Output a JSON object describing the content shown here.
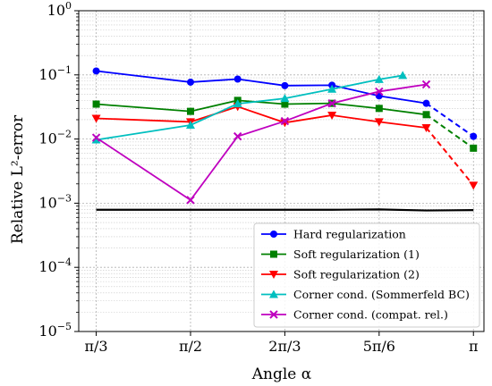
{
  "chart_data": {
    "type": "line",
    "xlabel": "Angle α",
    "ylabel": "Relative L²-error",
    "yscale": "log",
    "xlim": [
      0.95,
      3.2
    ],
    "ylim": [
      1e-05,
      1
    ],
    "grid": true,
    "legend_position": "lower-right",
    "x": [
      1.0472,
      1.5708,
      2.0944,
      2.3562,
      2.618,
      2.8798,
      3.1416
    ],
    "xticks": [
      {
        "value": 1.0472,
        "label": "π/3"
      },
      {
        "value": 1.5708,
        "label": "π/2"
      },
      {
        "value": 2.0944,
        "label": "2π/3"
      },
      {
        "value": 2.618,
        "label": "5π/6"
      },
      {
        "value": 3.1416,
        "label": "π"
      }
    ],
    "yticks": [
      {
        "value": 1,
        "base": "10",
        "exp": "0"
      },
      {
        "value": 0.1,
        "base": "10",
        "exp": "−1"
      },
      {
        "value": 0.01,
        "base": "10",
        "exp": "−2"
      },
      {
        "value": 0.001,
        "base": "10",
        "exp": "−3"
      },
      {
        "value": 0.0001,
        "base": "10",
        "exp": "−4"
      },
      {
        "value": 1e-05,
        "base": "10",
        "exp": "−5"
      }
    ],
    "series": [
      {
        "name": "Hard regularization",
        "color": "#0000ff",
        "marker": "circle",
        "x": [
          1.0472,
          1.5708,
          1.8326,
          2.0944,
          2.3562,
          2.618,
          2.8798
        ],
        "values": [
          0.115,
          0.077,
          0.086,
          0.068,
          0.069,
          0.047,
          0.036
        ],
        "extension": {
          "x": [
            2.8798,
            3.1416
          ],
          "values": [
            0.036,
            0.011
          ]
        }
      },
      {
        "name": "Soft regularization (1)",
        "color": "#008000",
        "marker": "square",
        "x": [
          1.0472,
          1.5708,
          1.8326,
          2.0944,
          2.3562,
          2.618,
          2.8798
        ],
        "values": [
          0.035,
          0.027,
          0.04,
          0.035,
          0.036,
          0.03,
          0.024
        ],
        "extension": {
          "x": [
            2.8798,
            3.1416
          ],
          "values": [
            0.024,
            0.0072
          ]
        }
      },
      {
        "name": "Soft regularization (2)",
        "color": "#ff0000",
        "marker": "triangle-down",
        "x": [
          1.0472,
          1.5708,
          1.8326,
          2.0944,
          2.3562,
          2.618,
          2.8798
        ],
        "values": [
          0.021,
          0.0185,
          0.032,
          0.018,
          0.0235,
          0.0185,
          0.015
        ],
        "extension": {
          "x": [
            2.8798,
            3.1416
          ],
          "values": [
            0.015,
            0.0019
          ]
        }
      },
      {
        "name": "Corner cond. (Sommerfeld BC)",
        "color": "#00bfbf",
        "marker": "triangle-up",
        "x": [
          1.0472,
          1.5708,
          1.8326,
          2.0944,
          2.3562,
          2.618,
          2.7489
        ],
        "values": [
          0.0097,
          0.0165,
          0.0355,
          0.043,
          0.06,
          0.085,
          0.098
        ]
      },
      {
        "name": "Corner cond. (compat. rel.)",
        "color": "#bf00bf",
        "marker": "x",
        "x": [
          1.0472,
          1.5708,
          1.8326,
          2.0944,
          2.3562,
          2.618,
          2.8798
        ],
        "values": [
          0.0105,
          0.00112,
          0.011,
          0.019,
          0.036,
          0.055,
          0.071
        ]
      }
    ],
    "reference_line": {
      "color": "#000000",
      "x": [
        1.0472,
        1.5708,
        2.0944,
        2.3562,
        2.618,
        2.8798,
        3.1416
      ],
      "values": [
        0.00079,
        0.00079,
        0.00079,
        0.00079,
        0.0008,
        0.00077,
        0.00078
      ]
    }
  }
}
